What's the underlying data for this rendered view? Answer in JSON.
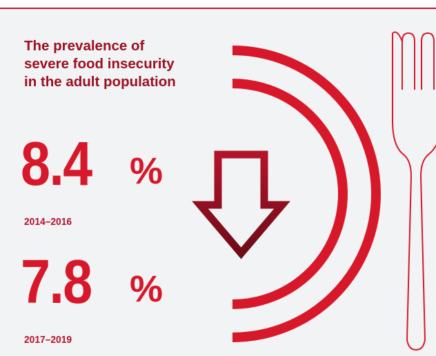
{
  "headline": {
    "lines": [
      "The prevalence of",
      "severe food insecurity",
      "in the adult population"
    ]
  },
  "stats": [
    {
      "value": "8.4",
      "unit": "%",
      "period": "2014–2016"
    },
    {
      "value": "7.8",
      "unit": "%",
      "period": "2017–2019"
    }
  ],
  "icons": {
    "trend": "down-arrow-icon",
    "plate": "plate-arcs-icon",
    "utensil": "fork-icon"
  },
  "colors": {
    "brand_red": "#d7182a",
    "headline_red": "#9b0f20",
    "arrow_dark_red": "#8a1020",
    "background": "#f2f3f4"
  }
}
